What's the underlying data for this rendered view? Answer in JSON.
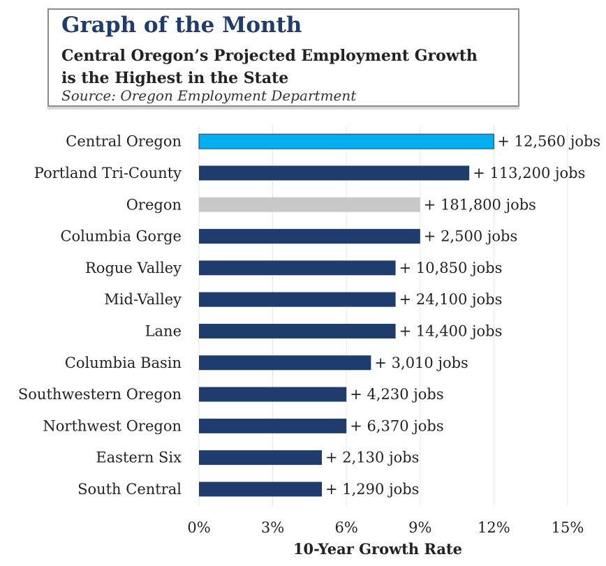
{
  "header": {
    "title": "Graph of the Month",
    "subtitle_line1": "Central Oregon’s Projected Employment Growth",
    "subtitle_line2": "is the Highest in the State",
    "source": "Source: Oregon Employment Department"
  },
  "chart_data": {
    "type": "bar",
    "orientation": "horizontal",
    "xlabel": "10-Year Growth Rate",
    "xlim": [
      0,
      15
    ],
    "x_ticks": [
      0,
      3,
      6,
      9,
      12,
      15
    ],
    "x_tick_labels": [
      "0%",
      "3%",
      "6%",
      "9%",
      "12%",
      "15%"
    ],
    "grid": "vertical",
    "categories": [
      "Central Oregon",
      "Portland Tri-County",
      "Oregon",
      "Columbia Gorge",
      "Rogue Valley",
      "Mid-Valley",
      "Lane",
      "Columbia Basin",
      "Southwestern Oregon",
      "Northwest Oregon",
      "Eastern Six",
      "South Central"
    ],
    "values": [
      12,
      11,
      9,
      9,
      8,
      8,
      8,
      7,
      6,
      6,
      5,
      5
    ],
    "value_labels": [
      "+ 12,560 jobs",
      "+ 113,200 jobs",
      "+ 181,800 jobs",
      "+ 2,500 jobs",
      "+ 10,850 jobs",
      "+ 24,100 jobs",
      "+ 14,400 jobs",
      "+ 3,010 jobs",
      "+ 4,230 jobs",
      "+ 6,370 jobs",
      "+ 2,130 jobs",
      "+ 1,290 jobs"
    ],
    "colors": {
      "highlight": "#00b0f0",
      "state": "#c8c8c8",
      "default": "#1f3c6e",
      "highlight_border": "#1f3c6e"
    }
  }
}
